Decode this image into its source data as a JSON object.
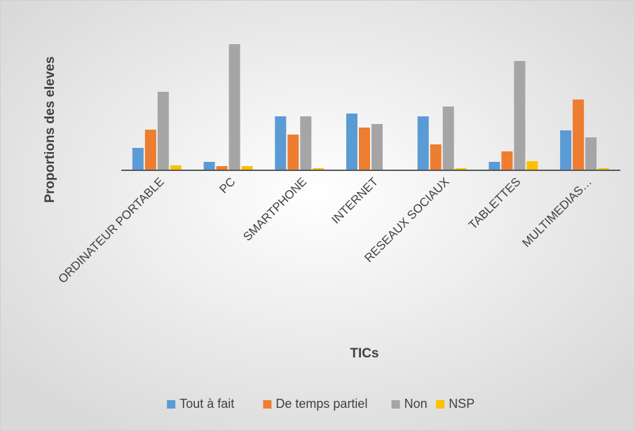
{
  "chart_data": {
    "type": "bar",
    "y_label": "Proportions des eleves",
    "x_label": "TICs",
    "categories": [
      "ORDINATEUR PORTABLE",
      "PC",
      "SMARTPHONE",
      "INTERNET",
      "RESEAUX SOCIAUX",
      "TABLETTES",
      "MULTIMEDIAS…"
    ],
    "series": [
      {
        "name": "Tout à fait",
        "color": "#5b9bd5",
        "values": [
          16,
          6,
          38.5,
          40.5,
          38.5,
          6,
          28.5
        ]
      },
      {
        "name": "De temps partiel",
        "color": "#ed7d31",
        "values": [
          29,
          3,
          25.5,
          30.5,
          18.5,
          13.5,
          50.5
        ]
      },
      {
        "name": "Non",
        "color": "#a5a5a5",
        "values": [
          56,
          90,
          38.5,
          33,
          45.5,
          78,
          23.5
        ]
      },
      {
        "name": "NSP",
        "color": "#ffc000",
        "values": [
          3.5,
          3,
          1.5,
          0,
          1.5,
          6.5,
          1.5
        ]
      }
    ],
    "ylim": [
      0,
      96
    ],
    "legend": "bottom"
  }
}
